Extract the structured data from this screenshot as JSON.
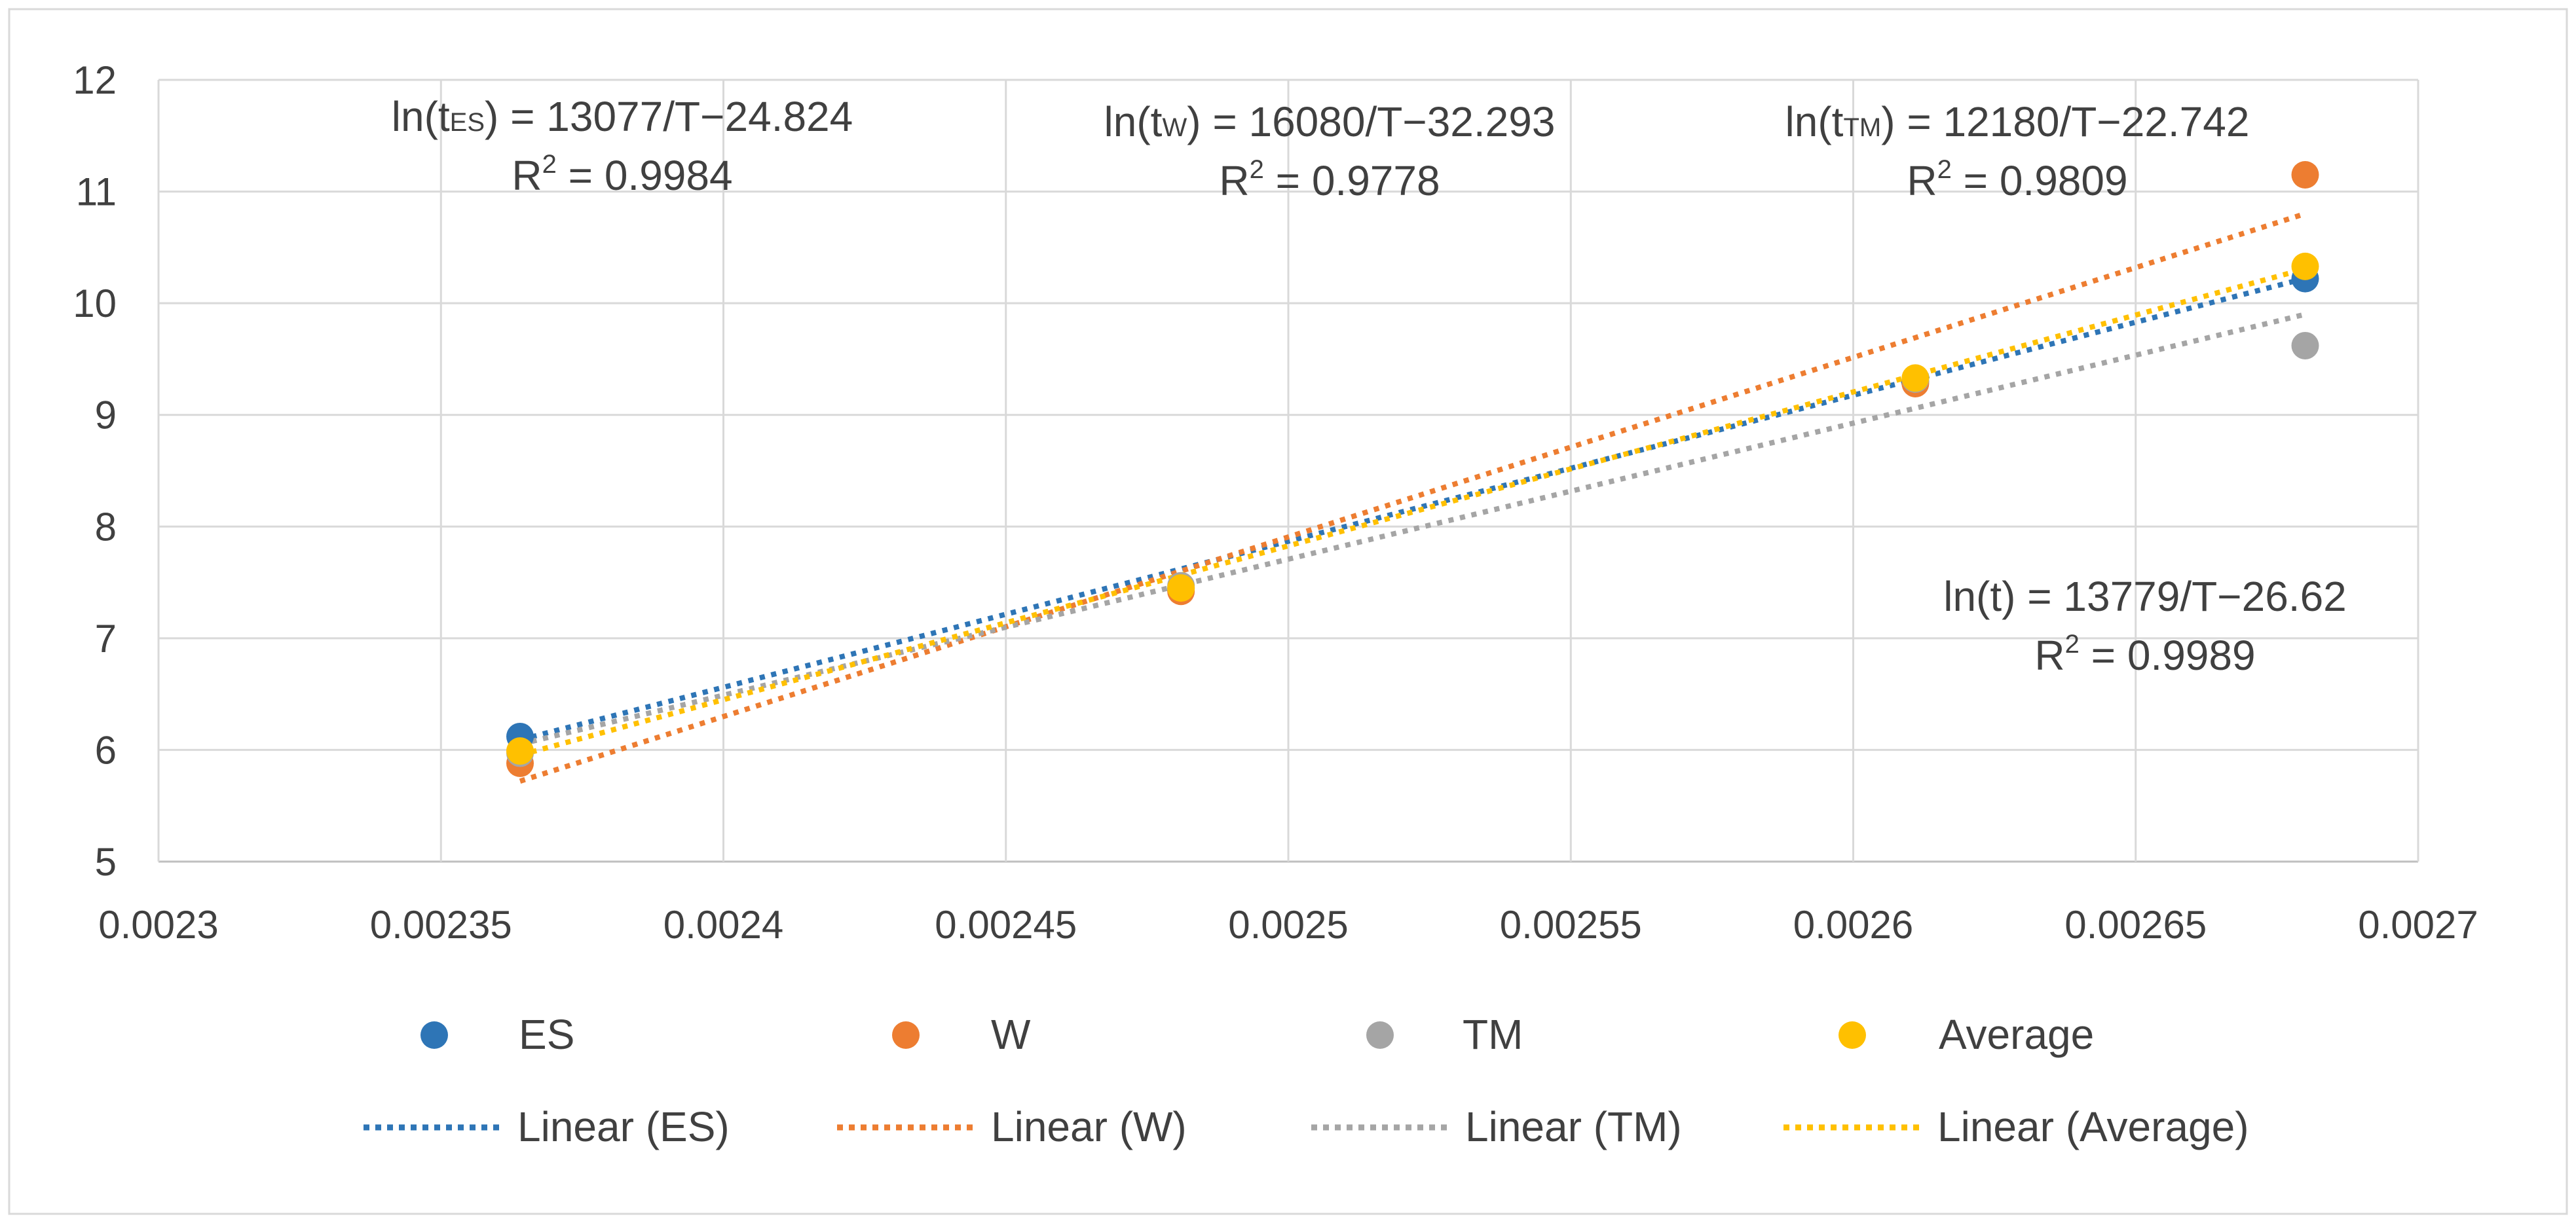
{
  "chart_data": {
    "type": "scatter",
    "title": "",
    "xlabel": "",
    "ylabel": "",
    "xlim": [
      0.0023,
      0.0027
    ],
    "ylim": [
      5,
      12
    ],
    "x_ticks": [
      "0.0023",
      "0.00235",
      "0.0024",
      "0.00245",
      "0.0025",
      "0.00255",
      "0.0026",
      "0.00265",
      "0.0027"
    ],
    "y_ticks": [
      "5",
      "6",
      "7",
      "8",
      "9",
      "10",
      "11",
      "12"
    ],
    "grid": true,
    "legend_position": "bottom",
    "series": [
      {
        "name": "ES",
        "color": "#2E75B6",
        "x": [
          0.002364,
          0.002481,
          0.002611,
          0.00268
        ],
        "y": [
          6.12,
          7.45,
          9.3,
          10.22
        ],
        "trend_label": "Linear (ES)",
        "trend": [
          13077,
          -24.824
        ]
      },
      {
        "name": "W",
        "color": "#ED7D31",
        "x": [
          0.002364,
          0.002481,
          0.002611,
          0.00268
        ],
        "y": [
          5.88,
          7.42,
          9.28,
          11.15
        ],
        "trend_label": "Linear (W)",
        "trend": [
          16080,
          -32.293
        ]
      },
      {
        "name": "TM",
        "color": "#A5A5A5",
        "x": [
          0.002364,
          0.002481,
          0.002611,
          0.00268
        ],
        "y": [
          5.97,
          7.47,
          9.32,
          9.62
        ],
        "trend_label": "Linear (TM)",
        "trend": [
          12180,
          -22.742
        ]
      },
      {
        "name": "Average",
        "color": "#FFC000",
        "x": [
          0.002364,
          0.002481,
          0.002611,
          0.00268
        ],
        "y": [
          5.99,
          7.45,
          9.33,
          10.33
        ],
        "trend_label": "Linear (Average)",
        "trend": [
          13779,
          -26.62
        ]
      }
    ],
    "annotations": [
      {
        "id": "es",
        "eq_prefix": "ln(t",
        "eq_sub": "ES",
        "eq_suffix": ") = 13077/T−24.824",
        "r2_prefix": "R",
        "r2_sup": "2",
        "r2_suffix": " = 0.9984"
      },
      {
        "id": "w",
        "eq_prefix": "ln(t",
        "eq_sub": "W",
        "eq_suffix": ") = 16080/T−32.293",
        "r2_prefix": "R",
        "r2_sup": "2",
        "r2_suffix": " = 0.9778"
      },
      {
        "id": "tm",
        "eq_prefix": "ln(t",
        "eq_sub": "TM",
        "eq_suffix": ") = 12180/T−22.742",
        "r2_prefix": "R",
        "r2_sup": "2",
        "r2_suffix": " = 0.9809"
      },
      {
        "id": "avg",
        "eq_prefix": "ln(t) = 13779/T−26.62",
        "eq_sub": "",
        "eq_suffix": "",
        "r2_prefix": "R",
        "r2_sup": "2",
        "r2_suffix": " = 0.9989"
      }
    ]
  }
}
